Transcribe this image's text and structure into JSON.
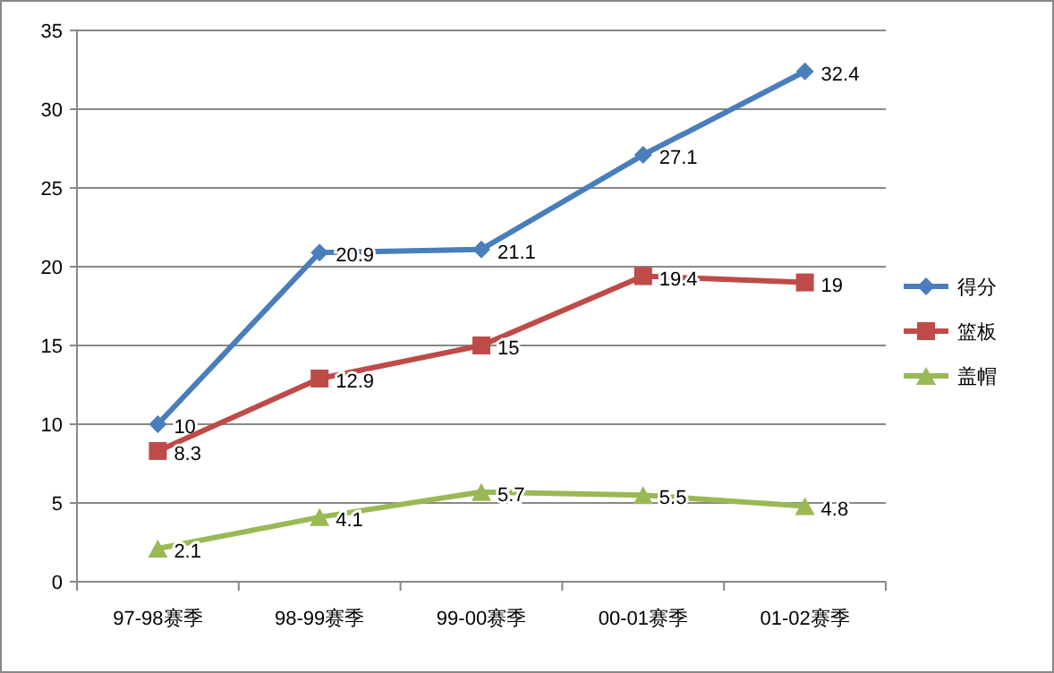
{
  "chart_data": {
    "type": "line",
    "categories": [
      "97-98赛季",
      "98-99赛季",
      "99-00赛季",
      "00-01赛季",
      "01-02赛季"
    ],
    "series": [
      {
        "name": "得分",
        "color": "#4a7ebb",
        "marker": "diamond",
        "values": [
          10,
          20.9,
          21.1,
          27.1,
          32.4
        ]
      },
      {
        "name": "篮板",
        "color": "#be4b48",
        "marker": "square",
        "values": [
          8.3,
          12.9,
          15,
          19.4,
          19
        ]
      },
      {
        "name": "盖帽",
        "color": "#98b954",
        "marker": "triangle",
        "values": [
          2.1,
          4.1,
          5.7,
          5.5,
          4.8
        ]
      }
    ],
    "ylim": [
      0,
      35
    ],
    "yticks": [
      0,
      5,
      10,
      15,
      20,
      25,
      30,
      35
    ],
    "grid": "y",
    "legend": "right",
    "data_labels": true
  }
}
